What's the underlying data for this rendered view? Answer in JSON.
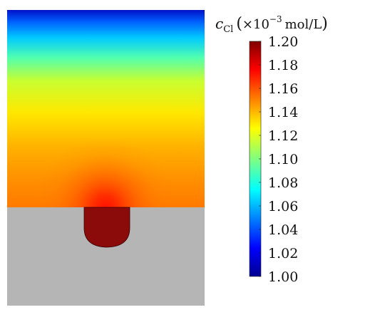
{
  "chart_data": {
    "type": "heatmap",
    "colorbar": {
      "quantity": "c",
      "subscript": "Cl",
      "unit_prefix": "×10",
      "exponent": "−3",
      "unit": "mol/L",
      "range": [
        1.0,
        1.2
      ],
      "ticks": [
        "1.20",
        "1.18",
        "1.16",
        "1.14",
        "1.12",
        "1.10",
        "1.08",
        "1.06",
        "1.04",
        "1.02",
        "1.00"
      ],
      "colormap": "jet"
    },
    "solid_color": "#b5b5b5",
    "pit_color": "#8b0a0a"
  }
}
